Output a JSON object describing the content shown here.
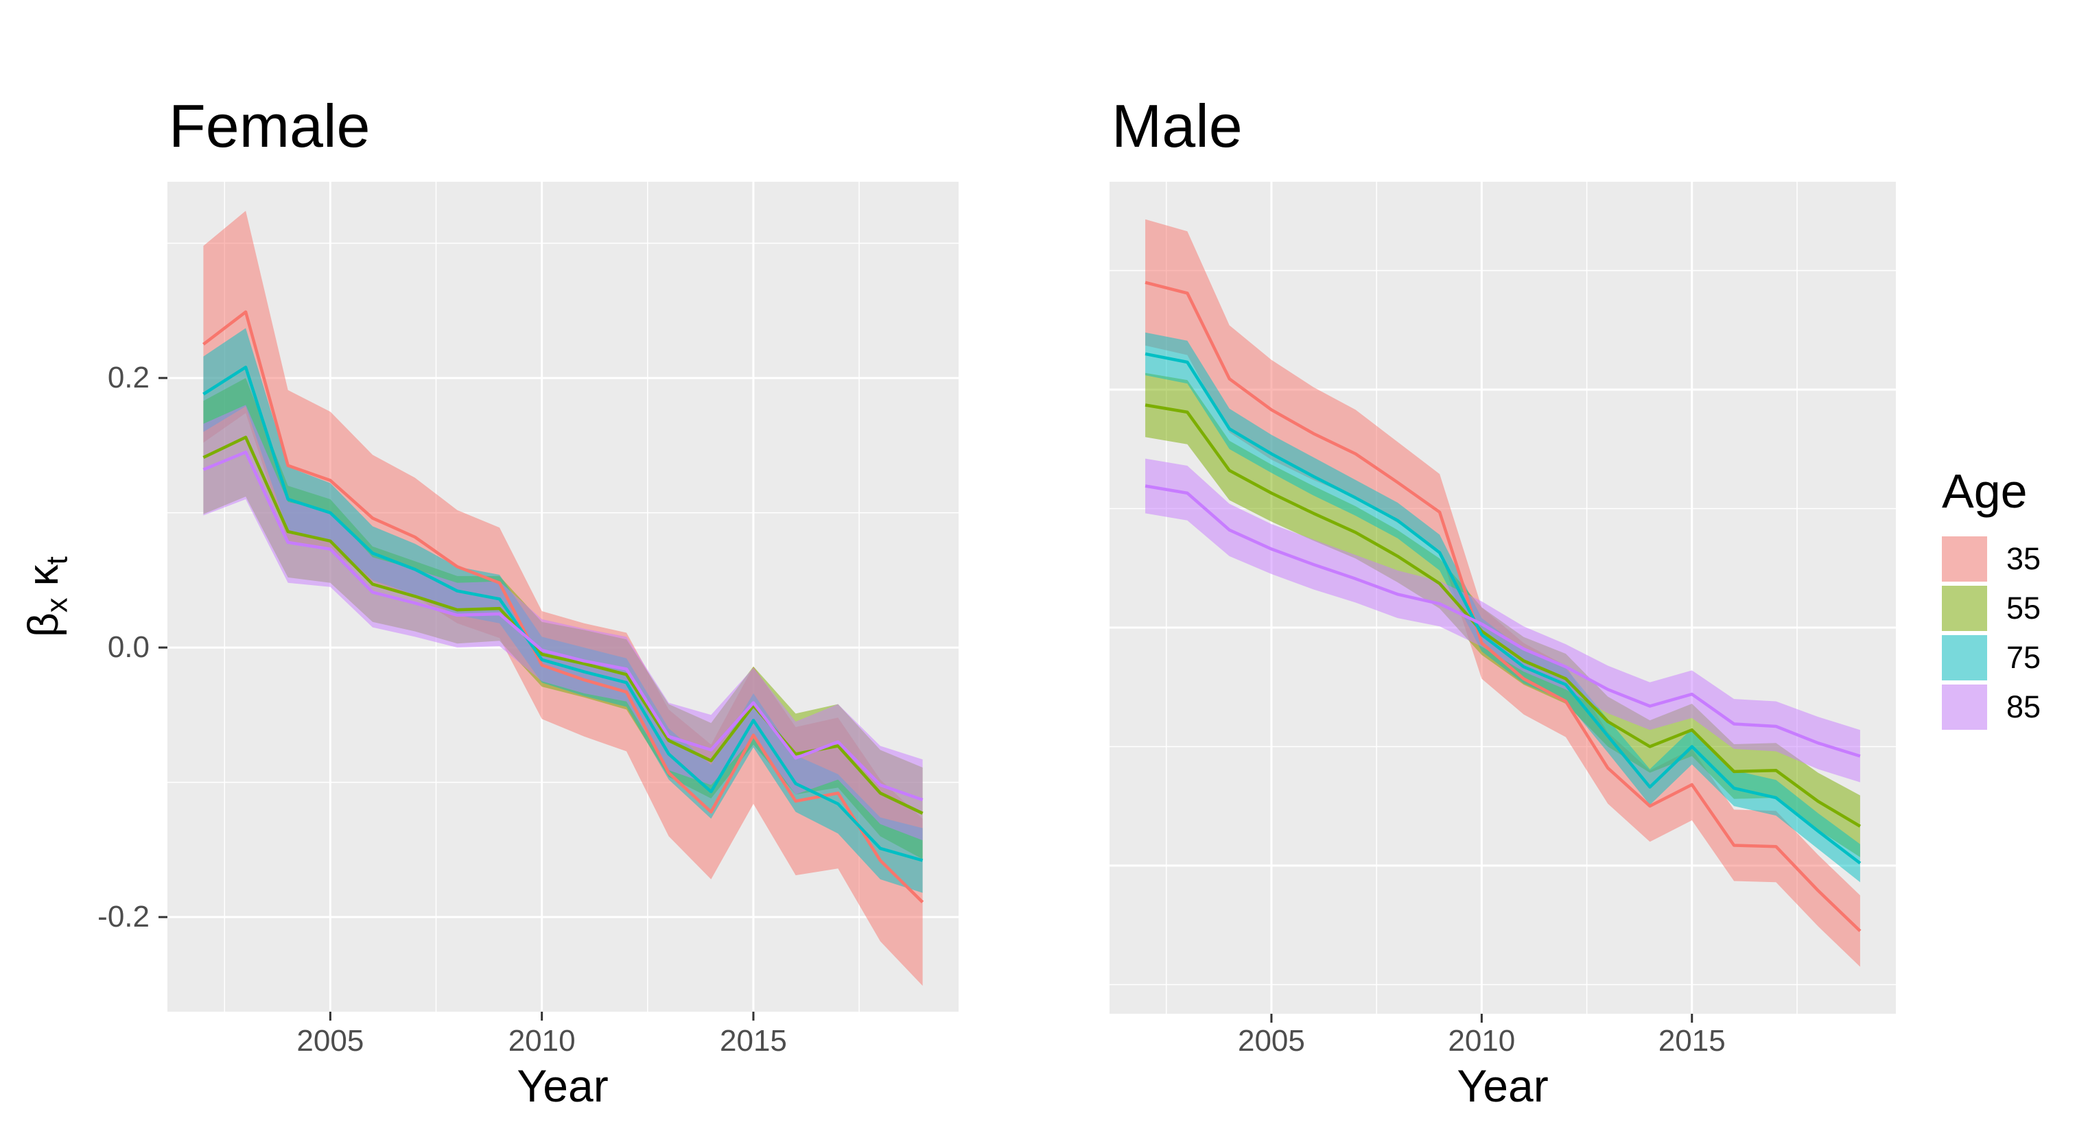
{
  "titles": {
    "left": "Female",
    "right": "Male"
  },
  "axis": {
    "x_label": "Year",
    "y_label_parts": {
      "beta": "β",
      "beta_sub": "x",
      "kappa": "κ",
      "kappa_sub": "t"
    },
    "x_ticks": {
      "labels": [
        "2005",
        "2010",
        "2015"
      ],
      "values": [
        2005,
        2010,
        2015
      ]
    },
    "y_ticks": {
      "labels": [
        "0.2",
        "0.0",
        "-0.2"
      ],
      "values": [
        0.2,
        0.0,
        -0.2
      ]
    }
  },
  "legend": {
    "title": "Age",
    "entries": [
      {
        "label": "35",
        "color": "#F8766D"
      },
      {
        "label": "55",
        "color": "#7CAE00"
      },
      {
        "label": "75",
        "color": "#00BFC4"
      },
      {
        "label": "85",
        "color": "#C77CFF"
      }
    ]
  },
  "style_colors": {
    "panel_background": "#EBEBEB",
    "grid": "#FFFFFF",
    "axis_text": "#4D4D4D",
    "tick_mark": "#333333",
    "ribbon_opacity": 0.5
  },
  "chart_data": [
    {
      "type": "line",
      "panel": "female",
      "title": "Female",
      "xlabel": "Year",
      "ylabel": "βx κt",
      "x": [
        2002,
        2003,
        2004,
        2005,
        2006,
        2007,
        2008,
        2009,
        2010,
        2011,
        2012,
        2013,
        2014,
        2015,
        2016,
        2017,
        2018,
        2019
      ],
      "x_range": [
        2001.15,
        2019.85
      ],
      "y_range": [
        -0.2702,
        0.3456
      ],
      "x_grid_major": [
        2005,
        2010,
        2015
      ],
      "x_grid_minor": [
        2002.5,
        2007.5,
        2012.5,
        2017.5
      ],
      "y_grid_major": [
        0.2,
        0.0,
        -0.2
      ],
      "y_grid_minor": [
        0.3,
        0.1,
        -0.1
      ],
      "series": [
        {
          "name": "35",
          "color": "#F8766D",
          "values": [
            0.225,
            0.249,
            0.135,
            0.124,
            0.096,
            0.082,
            0.06,
            0.048,
            -0.013,
            -0.024,
            -0.033,
            -0.093,
            -0.122,
            -0.065,
            -0.114,
            -0.108,
            -0.158,
            -0.189
          ],
          "lower": [
            0.152,
            0.174,
            0.079,
            0.073,
            0.049,
            0.038,
            0.018,
            0.007,
            -0.053,
            -0.066,
            -0.077,
            -0.14,
            -0.172,
            -0.116,
            -0.169,
            -0.164,
            -0.218,
            -0.251
          ],
          "upper": [
            0.298,
            0.324,
            0.191,
            0.175,
            0.143,
            0.126,
            0.102,
            0.089,
            0.027,
            0.018,
            0.011,
            -0.046,
            -0.072,
            -0.014,
            -0.059,
            -0.052,
            -0.098,
            -0.127
          ]
        },
        {
          "name": "55",
          "color": "#7CAE00",
          "values": [
            0.141,
            0.156,
            0.086,
            0.079,
            0.047,
            0.038,
            0.028,
            0.029,
            -0.005,
            -0.012,
            -0.02,
            -0.069,
            -0.084,
            -0.043,
            -0.079,
            -0.073,
            -0.108,
            -0.123
          ],
          "lower": [
            0.099,
            0.112,
            0.052,
            0.048,
            0.019,
            0.012,
            0.003,
            0.005,
            -0.029,
            -0.037,
            -0.046,
            -0.096,
            -0.112,
            -0.072,
            -0.109,
            -0.104,
            -0.14,
            -0.157
          ],
          "upper": [
            0.183,
            0.2,
            0.12,
            0.11,
            0.075,
            0.064,
            0.053,
            0.053,
            0.019,
            0.013,
            0.006,
            -0.042,
            -0.056,
            -0.014,
            -0.049,
            -0.042,
            -0.076,
            -0.089
          ]
        },
        {
          "name": "75",
          "color": "#00BFC4",
          "values": [
            0.188,
            0.208,
            0.11,
            0.1,
            0.07,
            0.058,
            0.042,
            0.036,
            -0.009,
            -0.018,
            -0.026,
            -0.079,
            -0.107,
            -0.054,
            -0.101,
            -0.116,
            -0.149,
            -0.158
          ],
          "lower": [
            0.16,
            0.179,
            0.086,
            0.078,
            0.05,
            0.039,
            0.024,
            0.018,
            -0.026,
            -0.036,
            -0.044,
            -0.098,
            -0.127,
            -0.074,
            -0.122,
            -0.138,
            -0.172,
            -0.182
          ],
          "upper": [
            0.216,
            0.237,
            0.134,
            0.122,
            0.09,
            0.077,
            0.06,
            0.054,
            0.008,
            0.0,
            -0.008,
            -0.06,
            -0.087,
            -0.034,
            -0.08,
            -0.094,
            -0.126,
            -0.134
          ]
        },
        {
          "name": "85",
          "color": "#C77CFF",
          "values": [
            0.132,
            0.145,
            0.078,
            0.073,
            0.041,
            0.033,
            0.024,
            0.025,
            -0.002,
            -0.01,
            -0.016,
            -0.066,
            -0.076,
            -0.041,
            -0.082,
            -0.07,
            -0.102,
            -0.113
          ],
          "lower": [
            0.098,
            0.11,
            0.048,
            0.045,
            0.015,
            0.008,
            0.0,
            0.001,
            -0.025,
            -0.034,
            -0.04,
            -0.091,
            -0.102,
            -0.067,
            -0.109,
            -0.098,
            -0.131,
            -0.143
          ],
          "upper": [
            0.166,
            0.18,
            0.108,
            0.101,
            0.067,
            0.058,
            0.048,
            0.049,
            0.021,
            0.014,
            0.008,
            -0.041,
            -0.05,
            -0.015,
            -0.055,
            -0.042,
            -0.073,
            -0.083
          ]
        }
      ]
    },
    {
      "type": "line",
      "panel": "male",
      "title": "Male",
      "xlabel": "Year",
      "ylabel": "βx κt",
      "x": [
        2002,
        2003,
        2004,
        2005,
        2006,
        2007,
        2008,
        2009,
        2010,
        2011,
        2012,
        2013,
        2014,
        2015,
        2016,
        2017,
        2018,
        2019
      ],
      "x_range": [
        2001.15,
        2019.85
      ],
      "y_range": [
        -0.3245,
        0.3746
      ],
      "x_grid_major": [
        2005,
        2010,
        2015
      ],
      "x_grid_minor": [
        2002.5,
        2007.5,
        2012.5,
        2017.5
      ],
      "y_grid_major": [
        0.2,
        0.0,
        -0.2
      ],
      "y_grid_minor": [
        0.3,
        0.1,
        -0.1,
        -0.3
      ],
      "series": [
        {
          "name": "35",
          "color": "#F8766D",
          "values": [
            0.29,
            0.281,
            0.209,
            0.183,
            0.163,
            0.146,
            0.122,
            0.097,
            -0.013,
            -0.043,
            -0.062,
            -0.118,
            -0.15,
            -0.132,
            -0.183,
            -0.184,
            -0.221,
            -0.255
          ],
          "lower": [
            0.237,
            0.229,
            0.164,
            0.141,
            0.124,
            0.109,
            0.088,
            0.065,
            -0.043,
            -0.073,
            -0.092,
            -0.148,
            -0.18,
            -0.162,
            -0.213,
            -0.214,
            -0.251,
            -0.285
          ],
          "upper": [
            0.343,
            0.333,
            0.254,
            0.225,
            0.202,
            0.183,
            0.156,
            0.129,
            0.017,
            -0.013,
            -0.032,
            -0.088,
            -0.12,
            -0.102,
            -0.153,
            -0.154,
            -0.191,
            -0.225
          ]
        },
        {
          "name": "55",
          "color": "#7CAE00",
          "values": [
            0.187,
            0.181,
            0.132,
            0.113,
            0.096,
            0.08,
            0.06,
            0.037,
            -0.003,
            -0.028,
            -0.043,
            -0.079,
            -0.1,
            -0.086,
            -0.121,
            -0.12,
            -0.146,
            -0.167
          ],
          "lower": [
            0.16,
            0.154,
            0.107,
            0.089,
            0.073,
            0.058,
            0.038,
            0.016,
            -0.023,
            -0.048,
            -0.064,
            -0.1,
            -0.122,
            -0.108,
            -0.144,
            -0.143,
            -0.17,
            -0.193
          ],
          "upper": [
            0.214,
            0.208,
            0.157,
            0.137,
            0.119,
            0.102,
            0.082,
            0.058,
            0.017,
            -0.008,
            -0.022,
            -0.058,
            -0.078,
            -0.064,
            -0.098,
            -0.097,
            -0.122,
            -0.141
          ]
        },
        {
          "name": "75",
          "color": "#00BFC4",
          "values": [
            0.23,
            0.223,
            0.167,
            0.146,
            0.127,
            0.109,
            0.09,
            0.063,
            -0.006,
            -0.033,
            -0.048,
            -0.091,
            -0.134,
            -0.1,
            -0.135,
            -0.143,
            -0.171,
            -0.198
          ],
          "lower": [
            0.212,
            0.205,
            0.15,
            0.13,
            0.111,
            0.094,
            0.075,
            0.048,
            -0.02,
            -0.047,
            -0.062,
            -0.105,
            -0.149,
            -0.115,
            -0.15,
            -0.158,
            -0.186,
            -0.214
          ],
          "upper": [
            0.248,
            0.241,
            0.184,
            0.162,
            0.143,
            0.124,
            0.105,
            0.078,
            0.008,
            -0.019,
            -0.034,
            -0.077,
            -0.119,
            -0.085,
            -0.12,
            -0.128,
            -0.156,
            -0.182
          ]
        },
        {
          "name": "85",
          "color": "#C77CFF",
          "values": [
            0.119,
            0.113,
            0.082,
            0.066,
            0.053,
            0.041,
            0.028,
            0.02,
            0.003,
            -0.018,
            -0.033,
            -0.052,
            -0.066,
            -0.056,
            -0.081,
            -0.083,
            -0.097,
            -0.108
          ],
          "lower": [
            0.096,
            0.09,
            0.06,
            0.045,
            0.032,
            0.021,
            0.008,
            0.001,
            -0.016,
            -0.037,
            -0.052,
            -0.072,
            -0.086,
            -0.076,
            -0.102,
            -0.104,
            -0.119,
            -0.13
          ],
          "upper": [
            0.142,
            0.136,
            0.104,
            0.087,
            0.074,
            0.061,
            0.048,
            0.039,
            0.022,
            0.001,
            -0.014,
            -0.032,
            -0.046,
            -0.036,
            -0.06,
            -0.062,
            -0.075,
            -0.086
          ]
        }
      ]
    }
  ]
}
